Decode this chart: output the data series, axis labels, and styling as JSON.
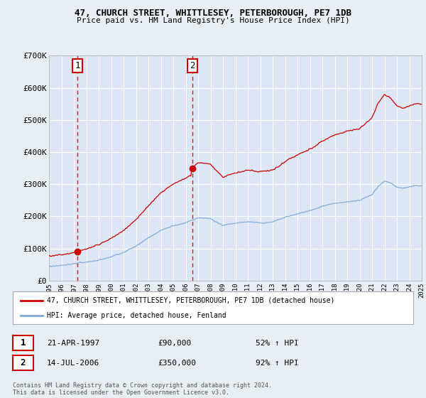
{
  "title1": "47, CHURCH STREET, WHITTLESEY, PETERBOROUGH, PE7 1DB",
  "title2": "Price paid vs. HM Land Registry's House Price Index (HPI)",
  "background_color": "#e8eef5",
  "plot_bg_color": "#dce6f5",
  "grid_color": "#ffffff",
  "red_line_color": "#cc0000",
  "blue_line_color": "#7ba7d4",
  "marker1_x": 1997.3,
  "marker1_y": 90000,
  "marker1_label": "1",
  "marker2_x": 2006.54,
  "marker2_y": 350000,
  "marker2_label": "2",
  "xmin": 1995,
  "xmax": 2025,
  "ymin": 0,
  "ymax": 700000,
  "yticks": [
    0,
    100000,
    200000,
    300000,
    400000,
    500000,
    600000,
    700000
  ],
  "ytick_labels": [
    "£0",
    "£100K",
    "£200K",
    "£300K",
    "£400K",
    "£500K",
    "£600K",
    "£700K"
  ],
  "legend_label1": "47, CHURCH STREET, WHITTLESEY, PETERBOROUGH, PE7 1DB (detached house)",
  "legend_label2": "HPI: Average price, detached house, Fenland",
  "annotation1_date": "21-APR-1997",
  "annotation1_price": "£90,000",
  "annotation1_hpi": "52% ↑ HPI",
  "annotation2_date": "14-JUL-2006",
  "annotation2_price": "£350,000",
  "annotation2_hpi": "92% ↑ HPI",
  "footer": "Contains HM Land Registry data © Crown copyright and database right 2024.\nThis data is licensed under the Open Government Licence v3.0."
}
